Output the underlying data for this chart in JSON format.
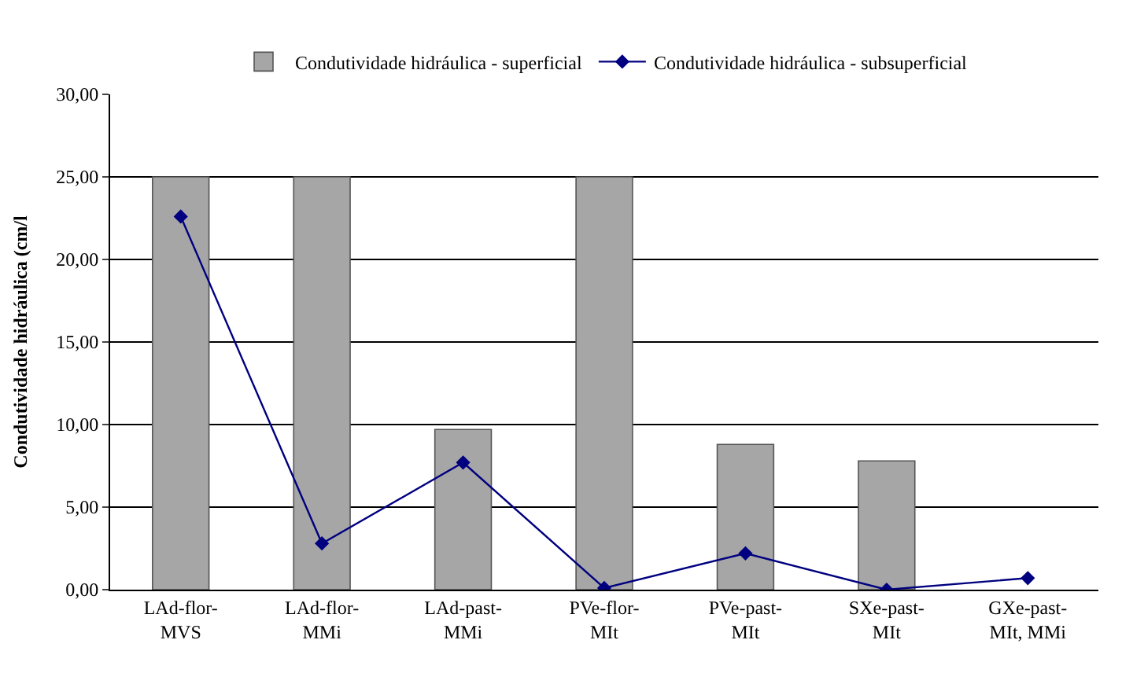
{
  "chart_data": {
    "type": "bar",
    "ylabel": "Condutividade hidráulica (cm/l",
    "categories": [
      "LAd-flor-\nMVS",
      "LAd-flor-\nMMi",
      "LAd-past-\nMMi",
      "PVe-flor-\nMIt",
      "PVe-past-\nMIt",
      "SXe-past-\nMIt",
      "GXe-past-\nMIt, MMi"
    ],
    "series": [
      {
        "name": "Condutividade hidráulica - superficial",
        "color": "#a6a6a6",
        "values": [
          25,
          25,
          9.7,
          25,
          8.8,
          7.8,
          null
        ]
      },
      {
        "name": "Condutividade hidráulica - subsuperficial",
        "type": "line",
        "color": "#000080",
        "marker": "diamond",
        "values": [
          22.6,
          2.8,
          7.7,
          0.1,
          2.2,
          0.0,
          0.7
        ]
      }
    ],
    "ylim": [
      0,
      30
    ],
    "yticks": [
      {
        "value": 0,
        "label": "0,00"
      },
      {
        "value": 5,
        "label": "5,00"
      },
      {
        "value": 10,
        "label": "10,00"
      },
      {
        "value": 15,
        "label": "15,00"
      },
      {
        "value": 20,
        "label": "20,00"
      },
      {
        "value": 25,
        "label": "25,00"
      },
      {
        "value": 30,
        "label": "30,00"
      }
    ],
    "grid": "y",
    "legend": "top"
  }
}
